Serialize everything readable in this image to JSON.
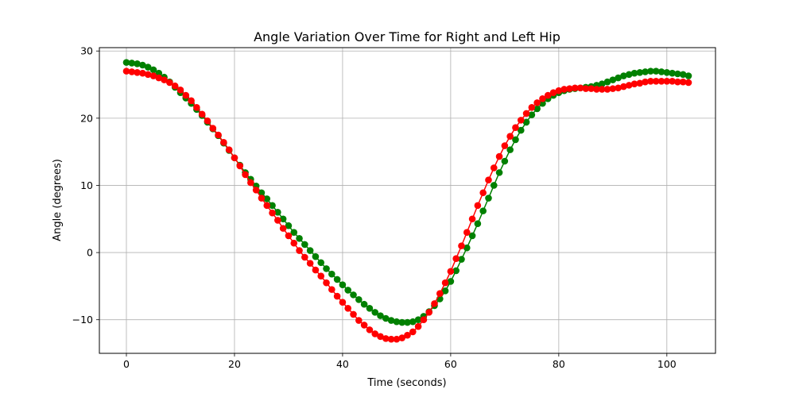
{
  "chart_data": {
    "type": "line",
    "title": "Angle Variation Over Time for Right and Left Hip",
    "xlabel": "Time (seconds)",
    "ylabel": "Angle (degrees)",
    "xlim": [
      -5,
      109
    ],
    "ylim": [
      -15,
      30.5
    ],
    "x_ticks": [
      0,
      20,
      40,
      60,
      80,
      100
    ],
    "y_ticks": [
      -10,
      0,
      10,
      20,
      30
    ],
    "grid": true,
    "legend": "none",
    "x": [
      0,
      1,
      2,
      3,
      4,
      5,
      6,
      7,
      8,
      9,
      10,
      11,
      12,
      13,
      14,
      15,
      16,
      17,
      18,
      19,
      20,
      21,
      22,
      23,
      24,
      25,
      26,
      27,
      28,
      29,
      30,
      31,
      32,
      33,
      34,
      35,
      36,
      37,
      38,
      39,
      40,
      41,
      42,
      43,
      44,
      45,
      46,
      47,
      48,
      49,
      50,
      51,
      52,
      53,
      54,
      55,
      56,
      57,
      58,
      59,
      60,
      61,
      62,
      63,
      64,
      65,
      66,
      67,
      68,
      69,
      70,
      71,
      72,
      73,
      74,
      75,
      76,
      77,
      78,
      79,
      80,
      81,
      82,
      83,
      84,
      85,
      86,
      87,
      88,
      89,
      90,
      91,
      92,
      93,
      94,
      95,
      96,
      97,
      98,
      99,
      100,
      101,
      102,
      103,
      104
    ],
    "series": [
      {
        "color": "#008000",
        "values": [
          28.3,
          28.2,
          28.1,
          27.9,
          27.6,
          27.2,
          26.7,
          26.1,
          25.4,
          24.6,
          23.8,
          23.0,
          22.2,
          21.3,
          20.4,
          19.4,
          18.4,
          17.4,
          16.3,
          15.2,
          14.1,
          13.0,
          11.9,
          10.9,
          9.9,
          8.9,
          8.0,
          7.0,
          6.0,
          5.0,
          4.0,
          3.0,
          2.1,
          1.2,
          0.3,
          -0.6,
          -1.5,
          -2.4,
          -3.2,
          -4.0,
          -4.8,
          -5.6,
          -6.3,
          -7.0,
          -7.7,
          -8.3,
          -8.9,
          -9.4,
          -9.8,
          -10.1,
          -10.3,
          -10.4,
          -10.4,
          -10.3,
          -10.0,
          -9.5,
          -8.8,
          -7.9,
          -6.9,
          -5.7,
          -4.3,
          -2.7,
          -1.0,
          0.7,
          2.5,
          4.3,
          6.2,
          8.1,
          10.0,
          11.9,
          13.6,
          15.3,
          16.8,
          18.2,
          19.4,
          20.5,
          21.4,
          22.2,
          22.9,
          23.4,
          23.8,
          24.1,
          24.3,
          24.4,
          24.5,
          24.6,
          24.7,
          24.9,
          25.1,
          25.4,
          25.7,
          26.0,
          26.3,
          26.5,
          26.7,
          26.8,
          26.9,
          27.0,
          27.0,
          26.9,
          26.8,
          26.7,
          26.6,
          26.5,
          26.3
        ]
      },
      {
        "color": "#ff0000",
        "values": [
          27.0,
          26.9,
          26.8,
          26.7,
          26.5,
          26.3,
          26.0,
          25.7,
          25.3,
          24.8,
          24.2,
          23.4,
          22.6,
          21.6,
          20.6,
          19.6,
          18.5,
          17.5,
          16.4,
          15.3,
          14.1,
          12.9,
          11.6,
          10.4,
          9.3,
          8.1,
          7.0,
          5.9,
          4.8,
          3.6,
          2.5,
          1.4,
          0.3,
          -0.7,
          -1.6,
          -2.6,
          -3.5,
          -4.5,
          -5.5,
          -6.5,
          -7.4,
          -8.3,
          -9.2,
          -10.1,
          -10.8,
          -11.5,
          -12.1,
          -12.5,
          -12.8,
          -12.9,
          -12.9,
          -12.7,
          -12.3,
          -11.8,
          -11.0,
          -10.0,
          -8.9,
          -7.6,
          -6.1,
          -4.5,
          -2.8,
          -0.9,
          1.0,
          3.0,
          5.0,
          7.0,
          8.9,
          10.8,
          12.6,
          14.3,
          15.9,
          17.3,
          18.6,
          19.7,
          20.7,
          21.6,
          22.3,
          22.9,
          23.4,
          23.8,
          24.1,
          24.3,
          24.4,
          24.5,
          24.5,
          24.4,
          24.4,
          24.3,
          24.3,
          24.3,
          24.4,
          24.5,
          24.7,
          24.9,
          25.1,
          25.2,
          25.4,
          25.5,
          25.5,
          25.5,
          25.5,
          25.5,
          25.4,
          25.4,
          25.3
        ]
      }
    ]
  }
}
